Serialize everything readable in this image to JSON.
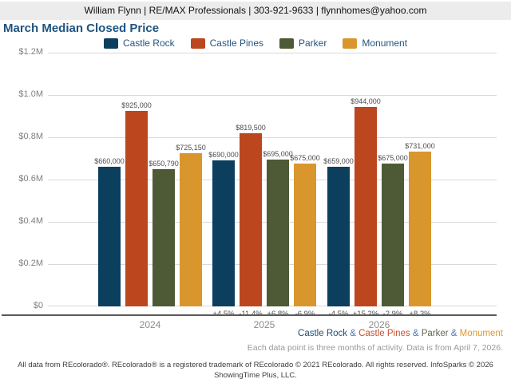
{
  "header": {
    "text": "William Flynn | RE/MAX Professionals | 303-921-9633 | flynnhomes@yahoo.com"
  },
  "title": "March Median Closed Price",
  "chart_data": {
    "type": "bar",
    "title": "March Median Closed Price",
    "categories": [
      "2024",
      "2025",
      "2026"
    ],
    "series": [
      {
        "name": "Castle Rock",
        "color": "#0c3e5e",
        "values": [
          660000,
          690000,
          659000
        ],
        "value_labels": [
          "$660,000",
          "$690,000",
          "$659,000"
        ],
        "pct_change": [
          null,
          "+4.5%",
          "-4.5%"
        ]
      },
      {
        "name": "Castle Pines",
        "color": "#bc461e",
        "values": [
          925000,
          819500,
          944000
        ],
        "value_labels": [
          "$925,000",
          "$819,500",
          "$944,000"
        ],
        "pct_change": [
          null,
          "-11.4%",
          "+15.2%"
        ]
      },
      {
        "name": "Parker",
        "color": "#4e5a36",
        "values": [
          650790,
          695000,
          675000
        ],
        "value_labels": [
          "$650,790",
          "$695,000",
          "$675,000"
        ],
        "pct_change": [
          null,
          "+6.8%",
          "-2.9%"
        ]
      },
      {
        "name": "Monument",
        "color": "#d9962d",
        "values": [
          725150,
          675000,
          731000
        ],
        "value_labels": [
          "$725,150",
          "$675,000",
          "$731,000"
        ],
        "pct_change": [
          null,
          "-6.9%",
          "+8.3%"
        ]
      }
    ],
    "ylim": [
      0,
      1200000
    ],
    "ytick_labels": [
      "$0",
      "$0.2M",
      "$0.4M",
      "$0.6M",
      "$0.8M",
      "$1.0M",
      "$1.2M"
    ],
    "grid": true,
    "legend_position": "top"
  },
  "footnote": {
    "parts": [
      {
        "text": "Castle Rock",
        "color": "#1d4e74"
      },
      {
        "text": " & ",
        "color": "#4a7cb5"
      },
      {
        "text": "Castle Pines",
        "color": "#c7502b"
      },
      {
        "text": " & ",
        "color": "#4a7cb5"
      },
      {
        "text": "Parker",
        "color": "#5f6650"
      },
      {
        "text": " & ",
        "color": "#4a7cb5"
      },
      {
        "text": "Monument",
        "color": "#dc9a33"
      }
    ],
    "data_line": "Each data point is three months of activity. Data is from April 7, 2026."
  },
  "footer": {
    "line1": "All data from REcolorado®. REcolorado® is a registered trademark of REcolorado © 2021 REcolorado. All rights reserved. InfoSparks © 2026",
    "line2": "ShowingTime Plus, LLC."
  }
}
